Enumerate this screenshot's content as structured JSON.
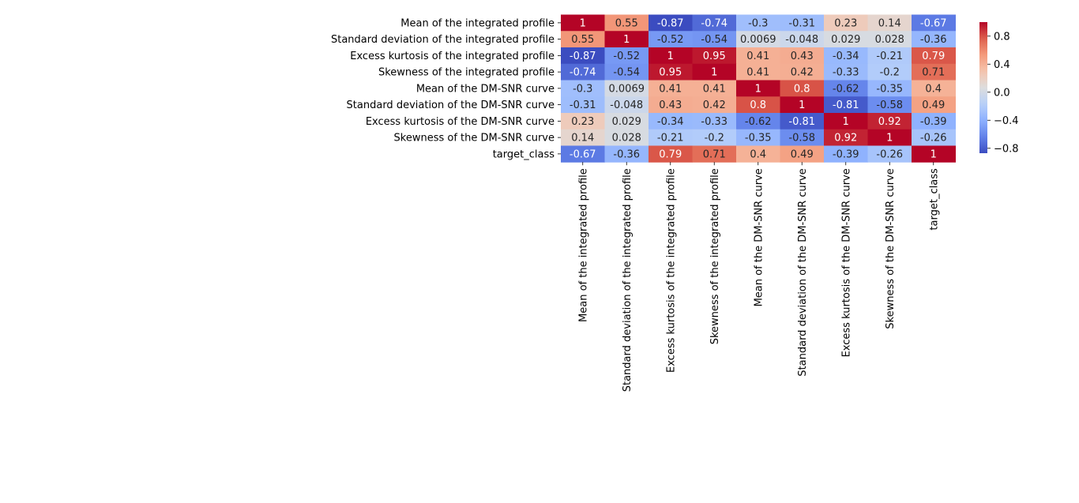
{
  "chart_data": {
    "type": "heatmap",
    "title": "",
    "xlabel": "",
    "ylabel": "",
    "colormap": "coolwarm",
    "vmin": -0.87,
    "vmax": 1.0,
    "row_labels": [
      "Mean of the integrated profile",
      "Standard deviation of the integrated profile",
      "Excess kurtosis of the integrated profile",
      "Skewness of the integrated profile",
      "Mean of the DM-SNR curve",
      "Standard deviation of the DM-SNR curve",
      "Excess kurtosis of the DM-SNR curve",
      "Skewness of the DM-SNR curve",
      "target_class"
    ],
    "column_labels": [
      "Mean of the integrated profile",
      "Standard deviation of the integrated profile",
      "Excess kurtosis of the integrated profile",
      "Skewness of the integrated profile",
      "Mean of the DM-SNR curve",
      "Standard deviation of the DM-SNR curve",
      "Excess kurtosis of the DM-SNR curve",
      "Skewness of the DM-SNR curve",
      "target_class"
    ],
    "values": [
      [
        1,
        0.55,
        -0.87,
        -0.74,
        -0.3,
        -0.31,
        0.23,
        0.14,
        -0.67
      ],
      [
        0.55,
        1,
        -0.52,
        -0.54,
        0.0069,
        -0.048,
        0.029,
        0.028,
        -0.36
      ],
      [
        -0.87,
        -0.52,
        1,
        0.95,
        0.41,
        0.43,
        -0.34,
        -0.21,
        0.79
      ],
      [
        -0.74,
        -0.54,
        0.95,
        1,
        0.41,
        0.42,
        -0.33,
        -0.2,
        0.71
      ],
      [
        -0.3,
        0.0069,
        0.41,
        0.41,
        1,
        0.8,
        -0.62,
        -0.35,
        0.4
      ],
      [
        -0.31,
        -0.048,
        0.43,
        0.42,
        0.8,
        1,
        -0.81,
        -0.58,
        0.49
      ],
      [
        0.23,
        0.029,
        -0.34,
        -0.33,
        -0.62,
        -0.81,
        1,
        0.92,
        -0.39
      ],
      [
        0.14,
        0.028,
        -0.21,
        -0.2,
        -0.35,
        -0.58,
        0.92,
        1,
        -0.26
      ],
      [
        -0.67,
        -0.36,
        0.79,
        0.71,
        0.4,
        0.49,
        -0.39,
        -0.26,
        1
      ]
    ],
    "colorbar": {
      "ticks": [
        0.8,
        0.4,
        0.0,
        -0.4,
        -0.8
      ],
      "tick_labels": [
        "0.8",
        "0.4",
        "0.0",
        "−0.4",
        "−0.8"
      ]
    }
  }
}
